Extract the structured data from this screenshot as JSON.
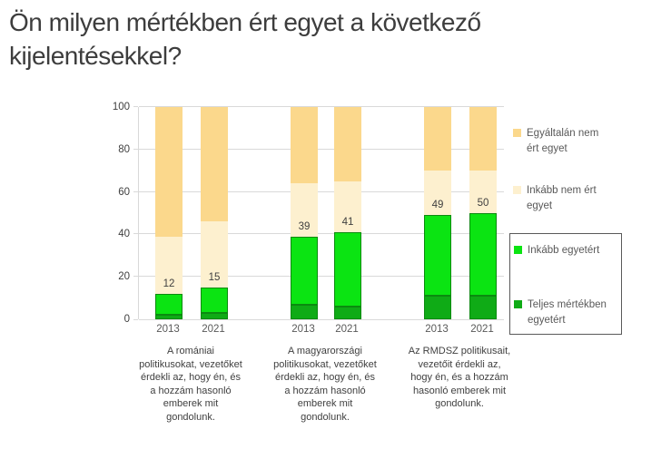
{
  "title": "Ön milyen mértékben ért egyet a következő kijelentésekkel?",
  "colors": {
    "egyaltalan_nem": "#FBD88C",
    "inkabb_nem": "#FDF0CF",
    "inkabb_egyetert": "#0BE412",
    "teljes_mertekben": "#0FAB16",
    "green_border": "#0B8A10",
    "gridline": "#D9D9D9",
    "axis_text": "#404040",
    "secondary_text": "#595959"
  },
  "chart_data": {
    "type": "bar",
    "stacked": true,
    "ylim": [
      0,
      100
    ],
    "yticks": [
      "0",
      "20",
      "40",
      "60",
      "80",
      "100"
    ],
    "grid": true,
    "legend_position": "right",
    "categories": [
      "2013",
      "2021",
      "2013",
      "2021",
      "2013",
      "2021"
    ],
    "groups": [
      {
        "years": [
          "2013",
          "2021"
        ],
        "label": "A romániai politikusokat, vezetőket érdekli az, hogy én, és a hozzám hasonló emberek mit gondolunk.",
        "label_lines": [
          "A romániai",
          "politikusokat, vezetőket",
          "érdekli az, hogy én, és",
          "a hozzám hasonló",
          "emberek mit",
          "gondolunk."
        ]
      },
      {
        "years": [
          "2013",
          "2021"
        ],
        "label": "A magyarországi politikusokat, vezetőket érdekli az, hogy én, és a hozzám hasonló emberek mit gondolunk.",
        "label_lines": [
          "A magyarországi",
          "politikusokat, vezetőket",
          "érdekli az, hogy én, és",
          "a hozzám hasonló",
          "emberek mit",
          "gondolunk."
        ]
      },
      {
        "years": [
          "2013",
          "2021"
        ],
        "label": "Az RMDSZ politikusait, vezetőit érdekli az, hogy én, és a hozzám hasonló emberek mit gondolunk.",
        "label_lines": [
          "Az RMDSZ politikusait,",
          "vezetőit érdekli az,",
          "hogy én, és a hozzám",
          "hasonló emberek mit",
          "gondolunk."
        ]
      }
    ],
    "series": [
      {
        "name": "Teljes mértékben egyetért",
        "color": "#0FAB16",
        "bordered": true,
        "values": [
          2,
          3,
          7,
          6,
          11,
          11
        ]
      },
      {
        "name": "Inkább egyetért",
        "color": "#0BE412",
        "bordered": true,
        "values": [
          10,
          12,
          32,
          35,
          38,
          39
        ]
      },
      {
        "name": "Inkább nem ért egyet",
        "color": "#FDF0CF",
        "bordered": false,
        "values": [
          27,
          31,
          25,
          24,
          21,
          20
        ]
      },
      {
        "name": "Egyáltalán nem ért egyet",
        "color": "#FBD88C",
        "bordered": false,
        "values": [
          61,
          54,
          36,
          35,
          30,
          30
        ]
      }
    ],
    "bar_labels": [
      "12",
      "15",
      "39",
      "41",
      "49",
      "50"
    ]
  },
  "legend": {
    "items": [
      {
        "label": "Egyáltalán nem ért egyet",
        "lines": [
          "Egyáltalán nem",
          "ért egyet"
        ],
        "color": "#FBD88C",
        "boxed": false
      },
      {
        "label": "Inkább nem ért egyet",
        "lines": [
          "Inkább nem ért",
          "egyet"
        ],
        "color": "#FDF0CF",
        "boxed": false
      },
      {
        "label": "Inkább egyetért",
        "lines": [
          "Inkább egyetért"
        ],
        "color": "#0BE412",
        "boxed": true
      },
      {
        "label": "Teljes mértékben egyetért",
        "lines": [
          "Teljes mértékben",
          "egyetért"
        ],
        "color": "#0FAB16",
        "boxed": true
      }
    ]
  }
}
